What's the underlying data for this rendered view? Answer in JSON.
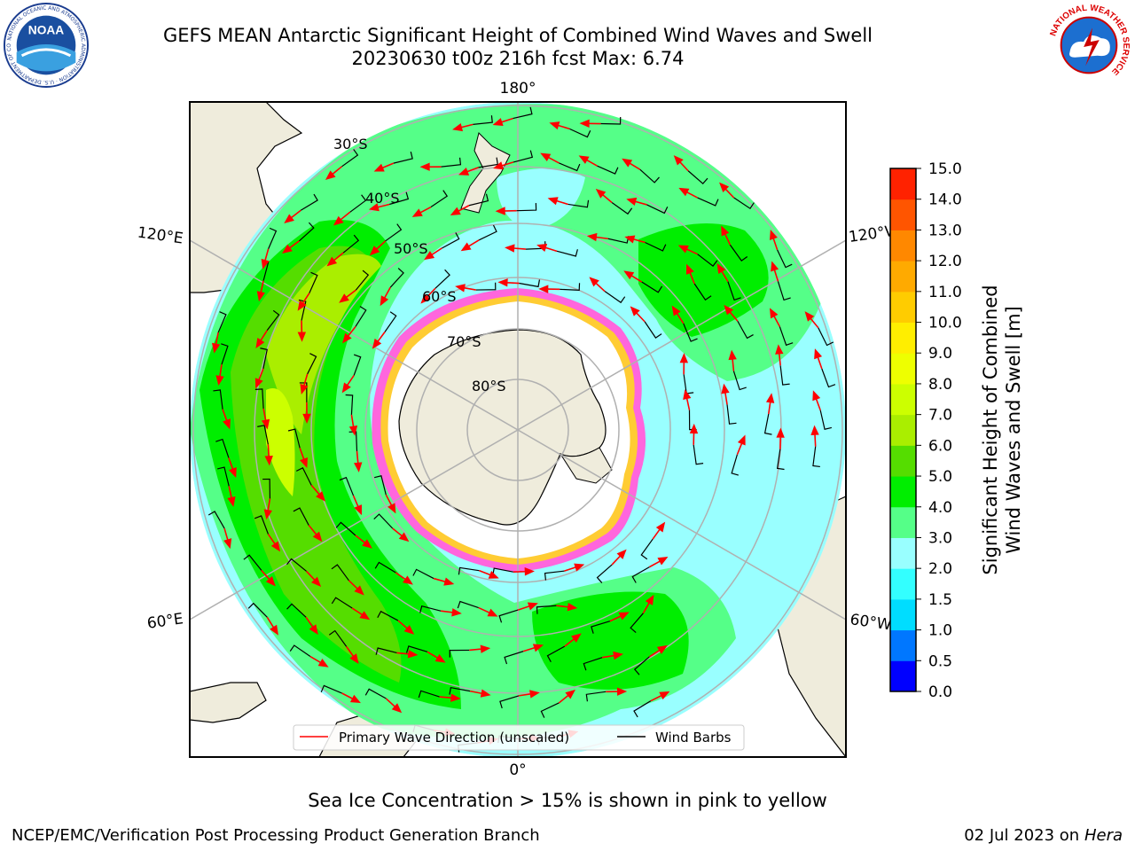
{
  "header": {
    "title_line1": "GEFS MEAN Antarctic Significant Height of Combined Wind Waves and Swell",
    "title_line2": "20230630 t00z 216h fcst   Max: 6.74"
  },
  "logos": {
    "noaa": {
      "text": "NOAA",
      "ring_text": "NATIONAL OCEANIC AND ATMOSPHERIC ADMINISTRATION · U.S. DEPARTMENT OF COMMERCE",
      "icon": "noaa-logo"
    },
    "nws": {
      "ring_text": "NATIONAL WEATHER SERVICE",
      "icon": "nws-logo"
    }
  },
  "map": {
    "projection": "south-polar-stereographic",
    "longitude_labels": {
      "top": "180°",
      "bottom": "0°",
      "upper_left": "120°E",
      "upper_right": "120°W",
      "lower_left": "60°E",
      "lower_right": "60°W"
    },
    "latitude_labels": [
      "30°S",
      "40°S",
      "50°S",
      "60°S",
      "70°S",
      "80°S"
    ],
    "colors": {
      "land": "#efecdc",
      "ice_pink": "#ff66dd",
      "ice_yellow": "#ffcc33",
      "wave_arrow": "#ff0000",
      "wind_barb": "#000000",
      "grid": "#b0b0b0"
    },
    "legend": {
      "primary_wave": "Primary Wave Direction (unscaled)",
      "wind_barbs": "Wind Barbs"
    }
  },
  "colorbar": {
    "label_line1": "Significant Height of Combined",
    "label_line2": "Wind Waves and Swell [m]",
    "ticks": [
      "0.0",
      "0.5",
      "1.0",
      "1.5",
      "2.0",
      "3.0",
      "4.0",
      "5.0",
      "6.0",
      "7.0",
      "8.0",
      "9.0",
      "10.0",
      "11.0",
      "12.0",
      "13.0",
      "14.0",
      "15.0"
    ],
    "colors": [
      "#0000ff",
      "#0077ff",
      "#00ddff",
      "#33ffff",
      "#99ffff",
      "#55ff88",
      "#00ee00",
      "#55dd00",
      "#aaee00",
      "#ccff00",
      "#eeff00",
      "#ffee00",
      "#ffcc00",
      "#ffaa00",
      "#ff8800",
      "#ff5500",
      "#ff2200"
    ]
  },
  "caption": "Sea Ice Concentration > 15% is shown in pink to yellow",
  "footer": {
    "left": "NCEP/EMC/Verification Post Processing Product Generation Branch",
    "right_date": "02 Jul 2023 on ",
    "right_machine": "Hera"
  }
}
